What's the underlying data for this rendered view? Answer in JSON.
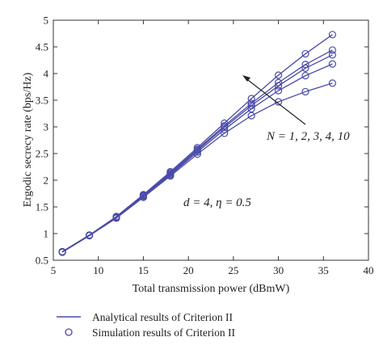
{
  "chart_data": {
    "type": "line",
    "xlabel": "Total transmission power (dBmW)",
    "ylabel": "Ergodic secrecy rate (bps/Hz)",
    "xlim": [
      5,
      40
    ],
    "ylim": [
      0.5,
      5
    ],
    "xticks": [
      "5",
      "10",
      "15",
      "20",
      "25",
      "30",
      "35",
      "40"
    ],
    "yticks": [
      "0.5",
      "1",
      "1.5",
      "2",
      "2.5",
      "3",
      "3.5",
      "4",
      "4.5",
      "5"
    ],
    "xtick_values": [
      5,
      10,
      15,
      20,
      25,
      30,
      35,
      40
    ],
    "ytick_values": [
      0.5,
      1,
      1.5,
      2,
      2.5,
      3,
      3.5,
      4,
      4.5,
      5
    ],
    "grid": false,
    "line_color": "#4a4aa8",
    "x": [
      6,
      9,
      12,
      15,
      18,
      21,
      24,
      27,
      30,
      33,
      36
    ],
    "series": [
      {
        "values": [
          0.65,
          0.96,
          1.29,
          1.68,
          2.08,
          2.49,
          2.88,
          3.21,
          3.47,
          3.66,
          3.82
        ]
      },
      {
        "values": [
          0.66,
          0.97,
          1.3,
          1.7,
          2.1,
          2.53,
          2.95,
          3.34,
          3.68,
          3.96,
          4.18
        ]
      },
      {
        "values": [
          0.66,
          0.97,
          1.31,
          1.71,
          2.12,
          2.56,
          2.99,
          3.4,
          3.77,
          4.1,
          4.35
        ]
      },
      {
        "values": [
          0.66,
          0.97,
          1.31,
          1.72,
          2.14,
          2.58,
          3.02,
          3.44,
          3.83,
          4.17,
          4.44
        ]
      },
      {
        "values": [
          0.66,
          0.97,
          1.32,
          1.73,
          2.16,
          2.61,
          3.07,
          3.53,
          3.97,
          4.37,
          4.73
        ]
      }
    ],
    "annotations": {
      "n_label": "N = 1, 2, 3, 4, 10",
      "param_label": "d = 4, η = 0.5"
    },
    "legend": {
      "placement": "bottom",
      "entries": [
        {
          "label": "Analytical results of Criterion II",
          "marker": "line"
        },
        {
          "label": "Simulation results of Criterion II",
          "marker": "circle"
        }
      ]
    }
  }
}
